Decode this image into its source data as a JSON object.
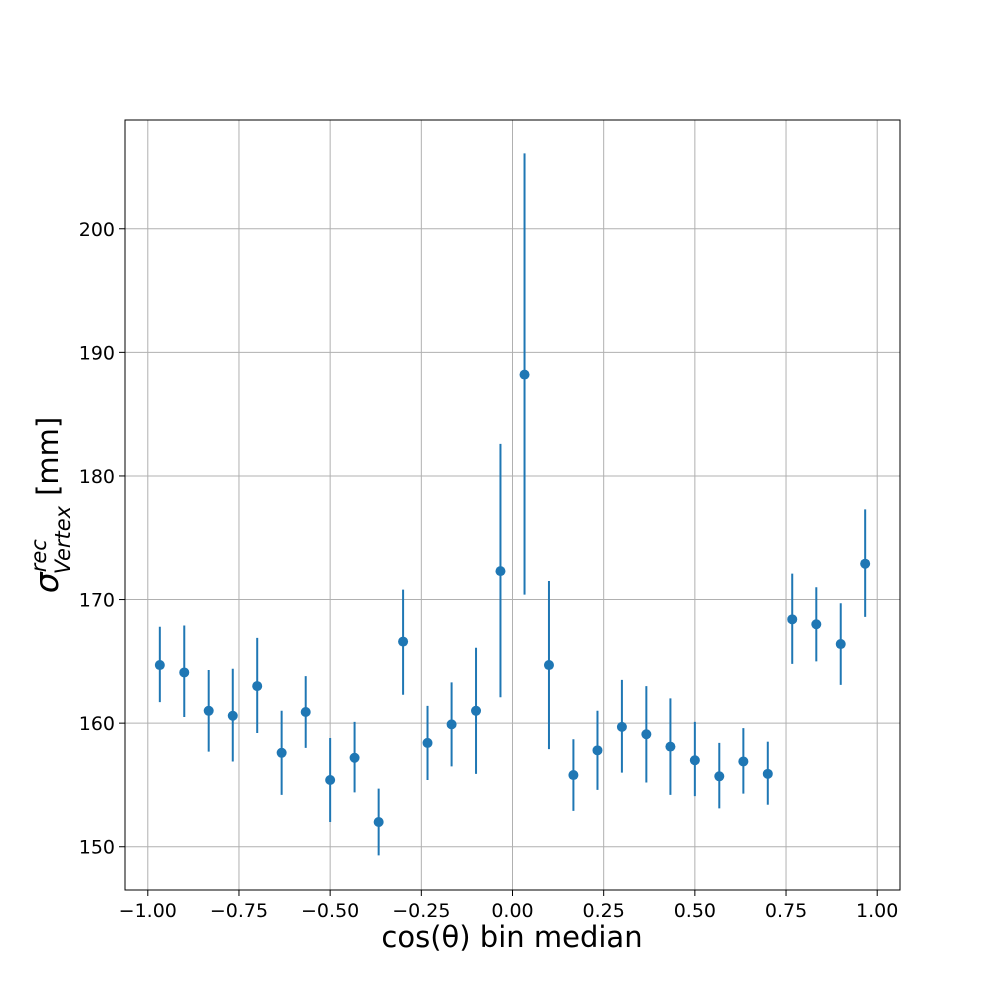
{
  "chart_data": {
    "type": "scatter",
    "title": "",
    "xlabel": "cos(θ) bin median",
    "ylabel": {
      "symbol": "σ",
      "subscript": "Vertex",
      "superscript": "rec",
      "unit": "[mm]"
    },
    "xlim": [
      -1.0625,
      1.0625
    ],
    "ylim": [
      146.5,
      208.8
    ],
    "xticks": [
      -1.0,
      -0.75,
      -0.5,
      -0.25,
      0.0,
      0.25,
      0.5,
      0.75,
      1.0
    ],
    "xtick_labels": [
      "−1.00",
      "−0.75",
      "−0.50",
      "−0.25",
      "0.00",
      "0.25",
      "0.50",
      "0.75",
      "1.00"
    ],
    "yticks": [
      150,
      160,
      170,
      180,
      190,
      200
    ],
    "ytick_labels": [
      "150",
      "160",
      "170",
      "180",
      "190",
      "200"
    ],
    "grid": true,
    "color": "#1f77b4",
    "series": [
      {
        "x": [
          -0.967,
          -0.9,
          -0.833,
          -0.767,
          -0.7,
          -0.633,
          -0.567,
          -0.5,
          -0.433,
          -0.367,
          -0.3,
          -0.233,
          -0.167,
          -0.1,
          -0.033,
          0.033,
          0.1,
          0.167,
          0.233,
          0.3,
          0.367,
          0.433,
          0.5,
          0.567,
          0.633,
          0.7,
          0.767,
          0.833,
          0.9,
          0.967
        ],
        "y": [
          164.7,
          164.1,
          161.0,
          160.6,
          163.0,
          157.6,
          160.9,
          155.4,
          157.2,
          152.0,
          166.6,
          158.4,
          159.9,
          161.0,
          172.3,
          188.2,
          164.7,
          155.8,
          157.8,
          159.7,
          159.1,
          158.1,
          157.0,
          155.7,
          156.9,
          155.9,
          168.4,
          168.0,
          166.4,
          172.9
        ],
        "yerr_low": [
          3.0,
          3.6,
          3.3,
          3.7,
          3.8,
          3.4,
          2.9,
          3.4,
          2.8,
          2.7,
          4.3,
          3.0,
          3.4,
          5.1,
          10.2,
          17.8,
          6.8,
          2.9,
          3.2,
          3.7,
          3.9,
          3.9,
          2.9,
          2.6,
          2.6,
          2.5,
          3.6,
          3.0,
          3.3,
          4.3
        ],
        "yerr_high": [
          3.1,
          3.8,
          3.3,
          3.8,
          3.9,
          3.4,
          2.9,
          3.4,
          2.9,
          2.7,
          4.2,
          3.0,
          3.4,
          5.1,
          10.3,
          17.9,
          6.8,
          2.9,
          3.2,
          3.8,
          3.9,
          3.9,
          3.1,
          2.7,
          2.7,
          2.6,
          3.7,
          3.0,
          3.3,
          4.4
        ]
      }
    ]
  }
}
